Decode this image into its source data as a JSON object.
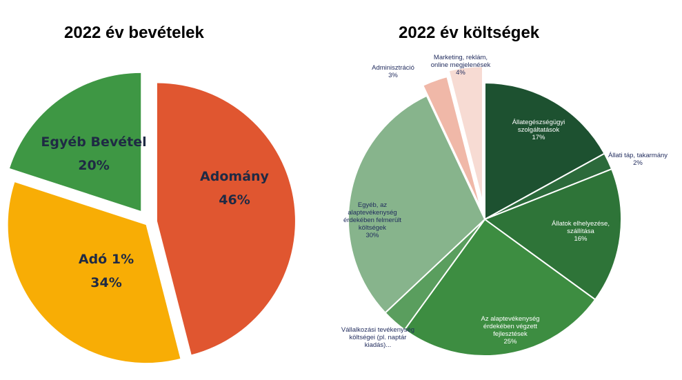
{
  "chart_data": [
    {
      "type": "pie",
      "title": "2022 év bevételek",
      "exploded": true,
      "slices": [
        {
          "label": "Adomány",
          "value": 46,
          "value_label": "46%",
          "color": "#e05630"
        },
        {
          "label": "Adó 1%",
          "value": 34,
          "value_label": "34%",
          "color": "#f8ad05"
        },
        {
          "label": "Egyéb Bevétel",
          "value": 20,
          "value_label": "20%",
          "color": "#3e9744"
        }
      ]
    },
    {
      "type": "pie",
      "title": "2022 év költségek",
      "slices": [
        {
          "label": "Állategészségügyi szolgáltatások",
          "value": 17,
          "value_label": "17%",
          "color": "#1d5130",
          "label_position": "inside"
        },
        {
          "label": "Állati táp, takarmány",
          "value": 2,
          "value_label": "2%",
          "color": "#2c6a3b",
          "label_position": "outside"
        },
        {
          "label": "Állatok elhelyezése, szállítása",
          "value": 16,
          "value_label": "16%",
          "color": "#2e7438",
          "label_position": "inside"
        },
        {
          "label": "Az alaptevékenység érdekében végzett fejlesztések",
          "value": 25,
          "value_label": "25%",
          "color": "#3d8d41",
          "label_position": "inside"
        },
        {
          "label": "Vállalkozási tevékenység költségei (pl. naptár kiadás)...",
          "value": 3,
          "value_label": "",
          "color": "#5a9e5e",
          "label_position": "outside"
        },
        {
          "label": "Egyéb, az alaptevékenység érdekében felmerült költségek",
          "value": 30,
          "value_label": "30%",
          "color": "#87b48c",
          "label_position": "inside"
        },
        {
          "label": "Adminisztráció",
          "value": 3,
          "value_label": "3%",
          "color": "#f0b8a8",
          "label_position": "outside"
        },
        {
          "label": "Marketing, reklám, online megjelenések",
          "value": 4,
          "value_label": "4%",
          "color": "#f7dbd3",
          "label_position": "outside"
        }
      ]
    }
  ]
}
